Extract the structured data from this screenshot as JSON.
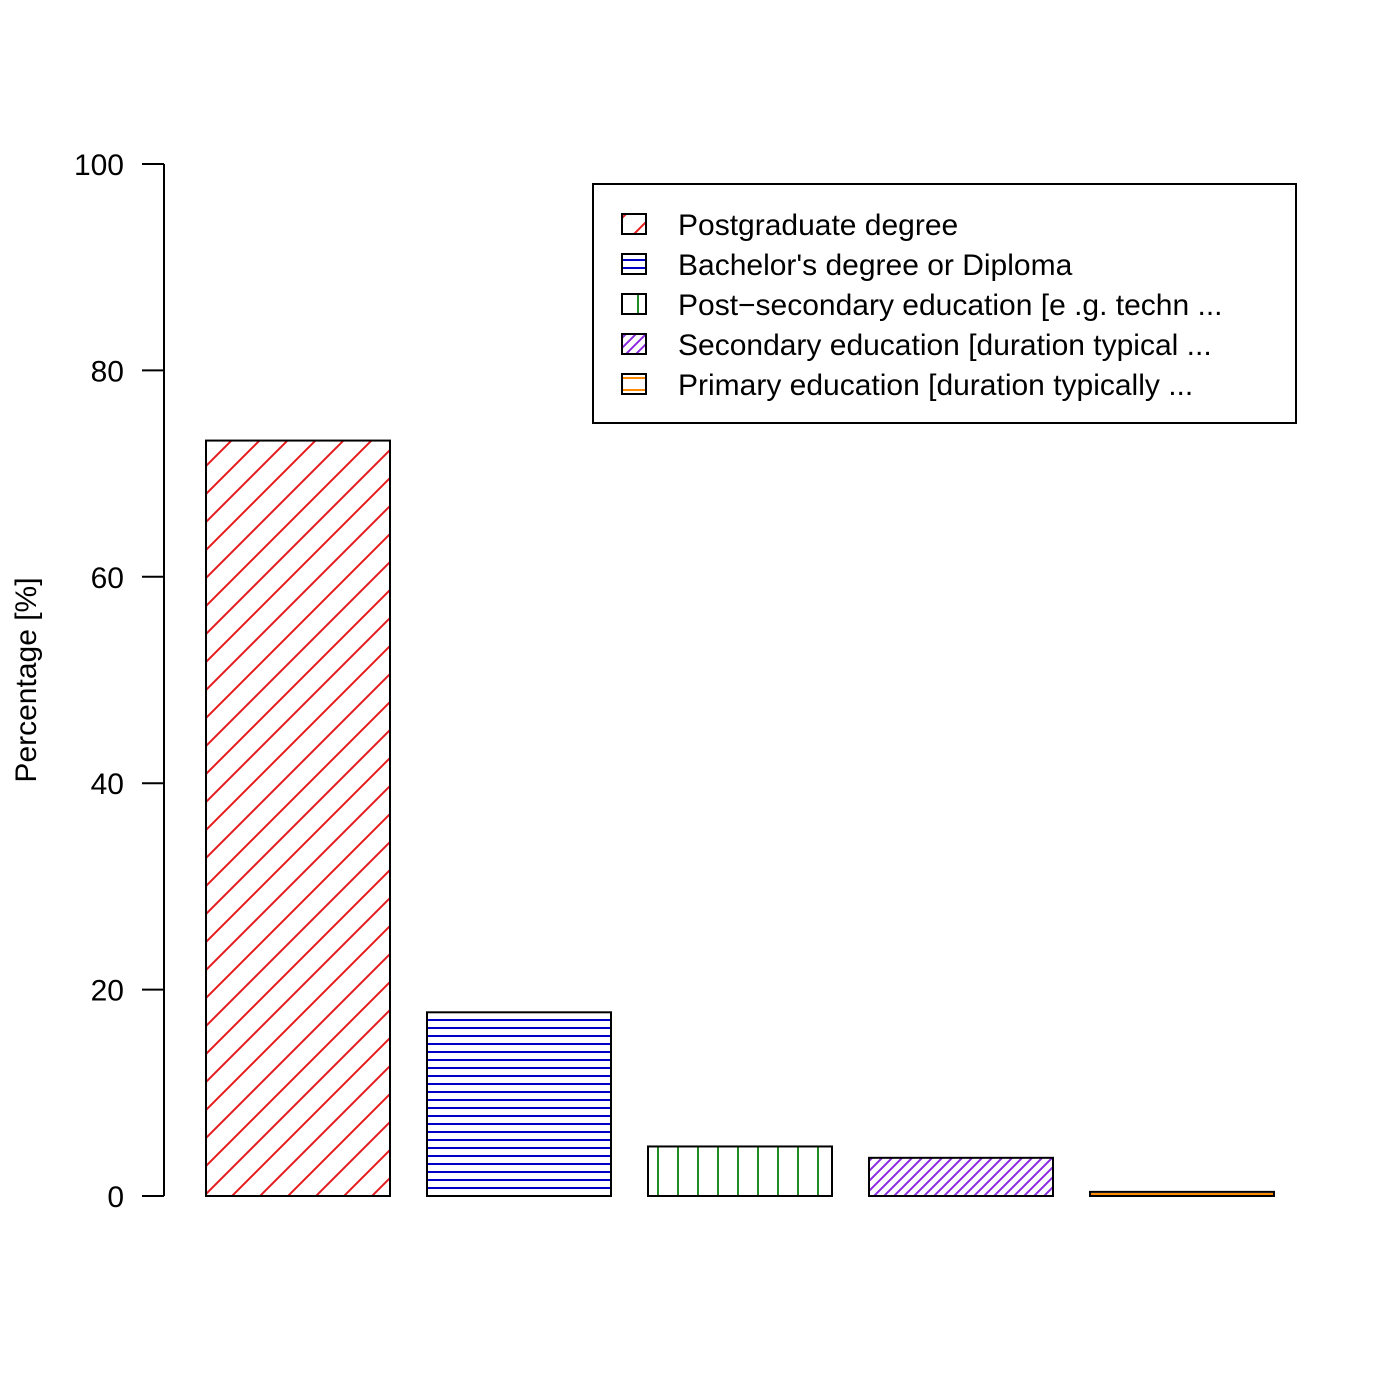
{
  "chart_data": {
    "type": "bar",
    "title": "",
    "xlabel": "",
    "ylabel": "Percentage [%]",
    "ylim": [
      0,
      100
    ],
    "yticks": [
      0,
      20,
      40,
      60,
      80,
      100
    ],
    "grid": false,
    "legend_position": "top-right",
    "series": [
      {
        "name": "Postgraduate degree",
        "value": 73.2,
        "color": "#E41A1C",
        "pattern": "diagonal-sparse"
      },
      {
        "name": "Bachelor's degree or Diploma",
        "value": 17.8,
        "color": "#0000CD",
        "pattern": "horizontal"
      },
      {
        "name": "Post−secondary education [e .g. techn ...",
        "value": 4.8,
        "color": "#228B22",
        "pattern": "vertical"
      },
      {
        "name": "Secondary education [duration typical ...",
        "value": 3.7,
        "color": "#8A2BE2",
        "pattern": "diagonal-dense"
      },
      {
        "name": "Primary education [duration typically ...",
        "value": 0.4,
        "color": "#FF8C00",
        "pattern": "horizontal-sparse"
      }
    ]
  }
}
